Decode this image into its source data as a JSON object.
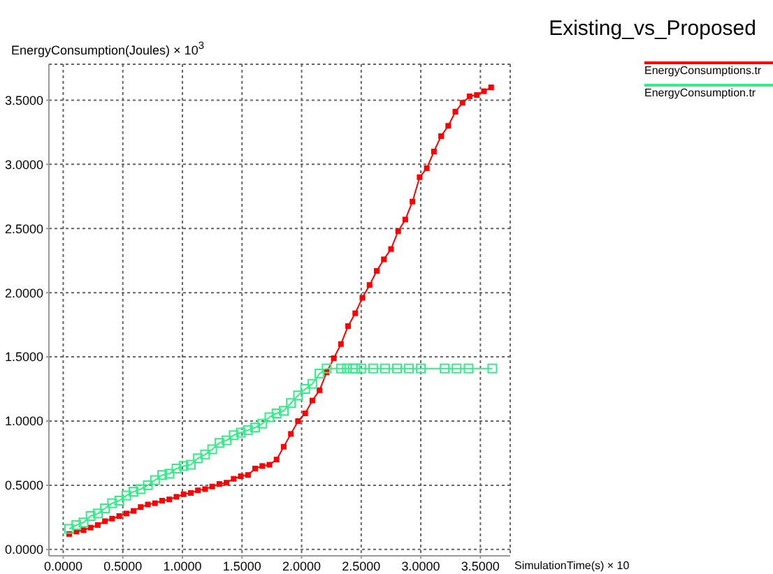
{
  "chart_data": {
    "type": "line",
    "title": "Existing_vs_Proposed",
    "xlabel": "SimulationTime(s) × 10",
    "ylabel": "EnergyConsumption(Joules) × 10$^{3}$",
    "xlim": [
      -0.12,
      3.75
    ],
    "ylim": [
      -0.05,
      3.78
    ],
    "xticks": [
      {
        "value": 0,
        "label": "0.0000"
      },
      {
        "value": 0.5,
        "label": "0.5000"
      },
      {
        "value": 1,
        "label": "1.0000"
      },
      {
        "value": 1.5,
        "label": "1.5000"
      },
      {
        "value": 2,
        "label": "2.0000"
      },
      {
        "value": 2.5,
        "label": "2.5000"
      },
      {
        "value": 3,
        "label": "3.0000"
      },
      {
        "value": 3.5,
        "label": "3.5000"
      }
    ],
    "yticks": [
      {
        "value": 0,
        "label": "0.0000"
      },
      {
        "value": 0.5,
        "label": "0.5000"
      },
      {
        "value": 1,
        "label": "1.0000"
      },
      {
        "value": 1.5,
        "label": "1.5000"
      },
      {
        "value": 2,
        "label": "2.0000"
      },
      {
        "value": 2.5,
        "label": "2.5000"
      },
      {
        "value": 3,
        "label": "3.0000"
      },
      {
        "value": 3.5,
        "label": "3.5000"
      }
    ],
    "grid": true,
    "legend": "top right",
    "marker": "square",
    "line_style": "solid",
    "series": [
      {
        "name": "EnergyConsumptions.tr",
        "color": "#ff0000",
        "x": [
          0.05,
          0.11,
          0.17,
          0.23,
          0.29,
          0.35,
          0.41,
          0.47,
          0.53,
          0.59,
          0.65,
          0.71,
          0.77,
          0.83,
          0.89,
          0.95,
          1.01,
          1.07,
          1.13,
          1.19,
          1.25,
          1.31,
          1.37,
          1.43,
          1.49,
          1.55,
          1.61,
          1.67,
          1.73,
          1.79,
          1.85,
          1.91,
          1.97,
          2.03,
          2.09,
          2.15,
          2.21,
          2.27,
          2.33,
          2.39,
          2.45,
          2.51,
          2.57,
          2.63,
          2.69,
          2.75,
          2.81,
          2.87,
          2.93,
          2.99,
          3.05,
          3.11,
          3.17,
          3.23,
          3.29,
          3.35,
          3.41,
          3.47,
          3.53,
          3.59
        ],
        "values": [
          0.12,
          0.14,
          0.15,
          0.17,
          0.19,
          0.22,
          0.24,
          0.26,
          0.28,
          0.3,
          0.33,
          0.35,
          0.36,
          0.38,
          0.39,
          0.41,
          0.43,
          0.44,
          0.46,
          0.47,
          0.49,
          0.51,
          0.52,
          0.55,
          0.57,
          0.58,
          0.63,
          0.65,
          0.66,
          0.7,
          0.8,
          0.9,
          1.0,
          1.06,
          1.16,
          1.24,
          1.38,
          1.49,
          1.6,
          1.74,
          1.84,
          1.96,
          2.06,
          2.17,
          2.26,
          2.34,
          2.48,
          2.57,
          2.71,
          2.9,
          2.97,
          3.1,
          3.22,
          3.3,
          3.41,
          3.48,
          3.53,
          3.54,
          3.57,
          3.6
        ]
      },
      {
        "name": "EnergyConsumption.tr",
        "color": "#33ee88",
        "x": [
          0.05,
          0.11,
          0.17,
          0.23,
          0.29,
          0.35,
          0.41,
          0.47,
          0.53,
          0.59,
          0.65,
          0.71,
          0.77,
          0.83,
          0.89,
          0.95,
          1.01,
          1.07,
          1.13,
          1.19,
          1.25,
          1.31,
          1.37,
          1.43,
          1.49,
          1.55,
          1.61,
          1.67,
          1.73,
          1.79,
          1.85,
          1.91,
          1.97,
          2.03,
          2.09,
          2.15,
          2.21,
          2.33,
          2.38,
          2.43,
          2.45,
          2.5,
          2.6,
          2.7,
          2.8,
          2.9,
          3.0,
          3.2,
          3.3,
          3.4,
          3.6
        ],
        "values": [
          0.16,
          0.19,
          0.21,
          0.26,
          0.28,
          0.32,
          0.36,
          0.38,
          0.42,
          0.45,
          0.47,
          0.5,
          0.54,
          0.58,
          0.59,
          0.63,
          0.65,
          0.66,
          0.71,
          0.74,
          0.78,
          0.83,
          0.85,
          0.89,
          0.91,
          0.93,
          0.95,
          0.98,
          1.03,
          1.06,
          1.08,
          1.14,
          1.2,
          1.25,
          1.29,
          1.37,
          1.41,
          1.41,
          1.41,
          1.41,
          1.41,
          1.41,
          1.41,
          1.41,
          1.41,
          1.41,
          1.41,
          1.41,
          1.41,
          1.41,
          1.41
        ]
      }
    ]
  }
}
